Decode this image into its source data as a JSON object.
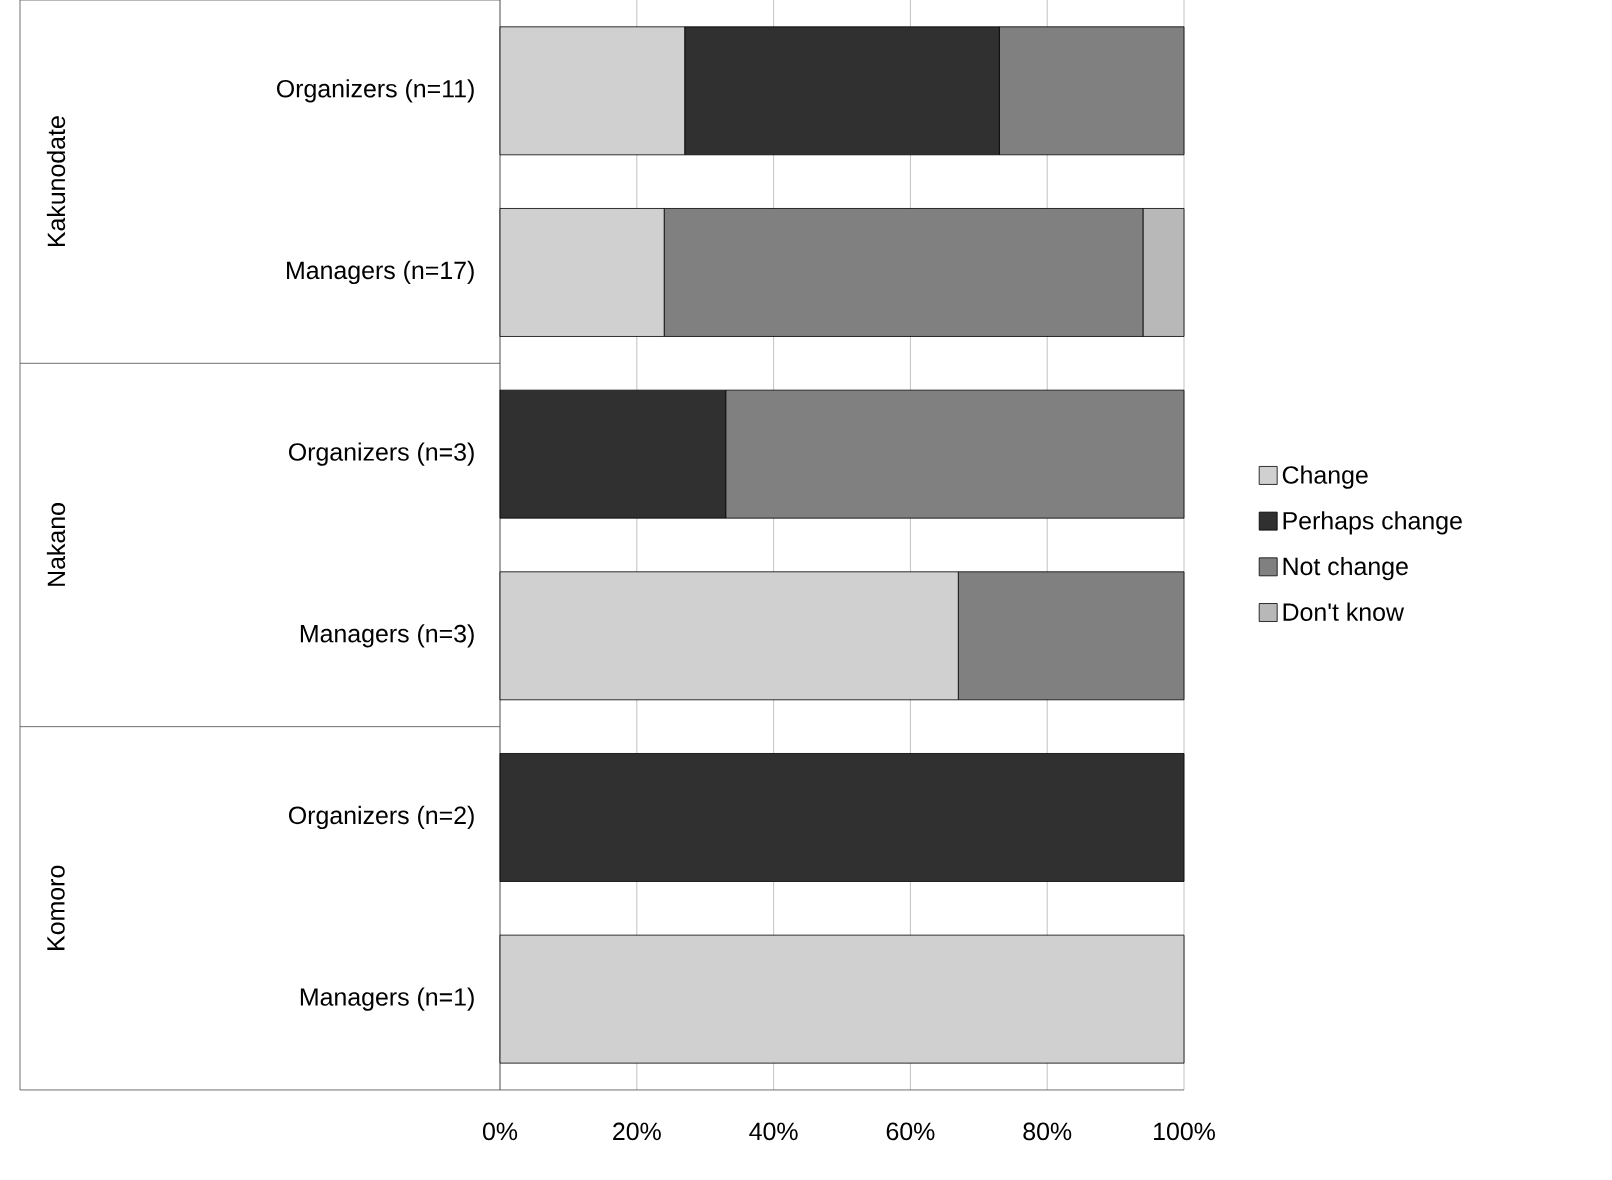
{
  "chart_data": {
    "type": "bar",
    "orientation": "horizontal",
    "stacked": true,
    "grid": "x",
    "legend": "right",
    "categories": [
      "Organizers (n=11)",
      "Managers (n=17)",
      "Organizers (n=3)",
      "Managers (n=3)",
      "Organizers (n=2)",
      "Managers (n=1)"
    ],
    "series": [
      {
        "name": "Change",
        "color": "#d0d0d0",
        "values": [
          27,
          24,
          0,
          67,
          0,
          100
        ]
      },
      {
        "name": "Perhaps change",
        "color": "#303030",
        "values": [
          46,
          0,
          33,
          0,
          100,
          0
        ]
      },
      {
        "name": "Not change",
        "color": "#808080",
        "values": [
          27,
          70,
          67,
          33,
          0,
          0
        ]
      },
      {
        "name": "Don't know",
        "color": "#b8b8b8",
        "values": [
          0,
          6,
          0,
          0,
          0,
          0
        ]
      }
    ],
    "xlim": [
      0,
      100
    ],
    "xticks": [
      {
        "value": 0,
        "label": "0%"
      },
      {
        "value": 20,
        "label": "20%"
      },
      {
        "value": 40,
        "label": "40%"
      },
      {
        "value": 60,
        "label": "60%"
      },
      {
        "value": 80,
        "label": "80%"
      },
      {
        "value": 100,
        "label": "100%"
      }
    ],
    "annotations": [
      "Kakunodate",
      "Nakano",
      "Komoro"
    ]
  }
}
